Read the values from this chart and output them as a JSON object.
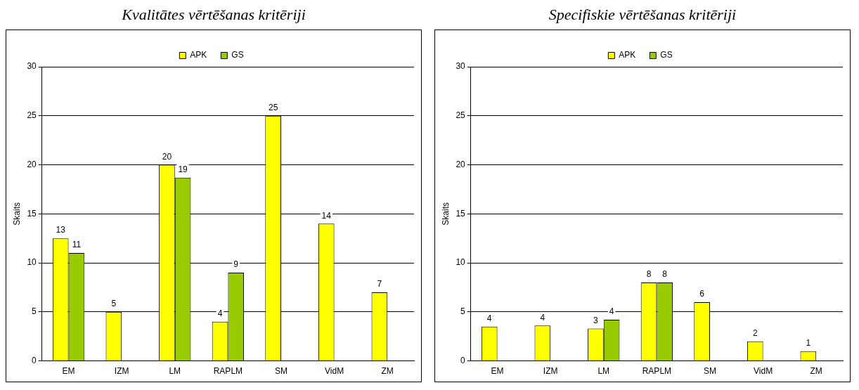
{
  "chart_data": [
    {
      "type": "bar",
      "title": "Kvalitātes vērtēšanas kritēriji",
      "ylabel": "Skaits",
      "categories": [
        "EM",
        "IZM",
        "LM",
        "RAPLM",
        "SM",
        "VidM",
        "ZM"
      ],
      "series": [
        {
          "name": "APK",
          "color": "#ffff00",
          "values": [
            12.5,
            5,
            20,
            4,
            25,
            14,
            7
          ],
          "value_labels": [
            "13",
            "5",
            "20",
            "4",
            "25",
            "14",
            "7"
          ]
        },
        {
          "name": "GS",
          "color": "#99cc00",
          "values": [
            11,
            null,
            18.7,
            9,
            null,
            null,
            null
          ],
          "value_labels": [
            "11",
            null,
            "19",
            "9",
            null,
            null,
            null
          ]
        }
      ],
      "ylim": [
        0,
        30
      ],
      "yticks": [
        0,
        5,
        10,
        15,
        20,
        25,
        30
      ],
      "grid": "y",
      "legend": "top"
    },
    {
      "type": "bar",
      "title": "Specifiskie vērtēšanas kritēriji",
      "ylabel": "Skaits",
      "categories": [
        "EM",
        "IZM",
        "LM",
        "RAPLM",
        "SM",
        "VidM",
        "ZM"
      ],
      "series": [
        {
          "name": "APK",
          "color": "#ffff00",
          "values": [
            3.5,
            3.6,
            3.3,
            8,
            6,
            2,
            1
          ],
          "value_labels": [
            "4",
            "4",
            "3",
            "8",
            "6",
            "2",
            "1"
          ]
        },
        {
          "name": "GS",
          "color": "#99cc00",
          "values": [
            null,
            null,
            4.2,
            8,
            null,
            null,
            null
          ],
          "value_labels": [
            null,
            null,
            "4",
            "8",
            null,
            null,
            null
          ]
        }
      ],
      "ylim": [
        0,
        30
      ],
      "yticks": [
        0,
        5,
        10,
        15,
        20,
        25,
        30
      ],
      "grid": "y",
      "legend": "top"
    }
  ]
}
